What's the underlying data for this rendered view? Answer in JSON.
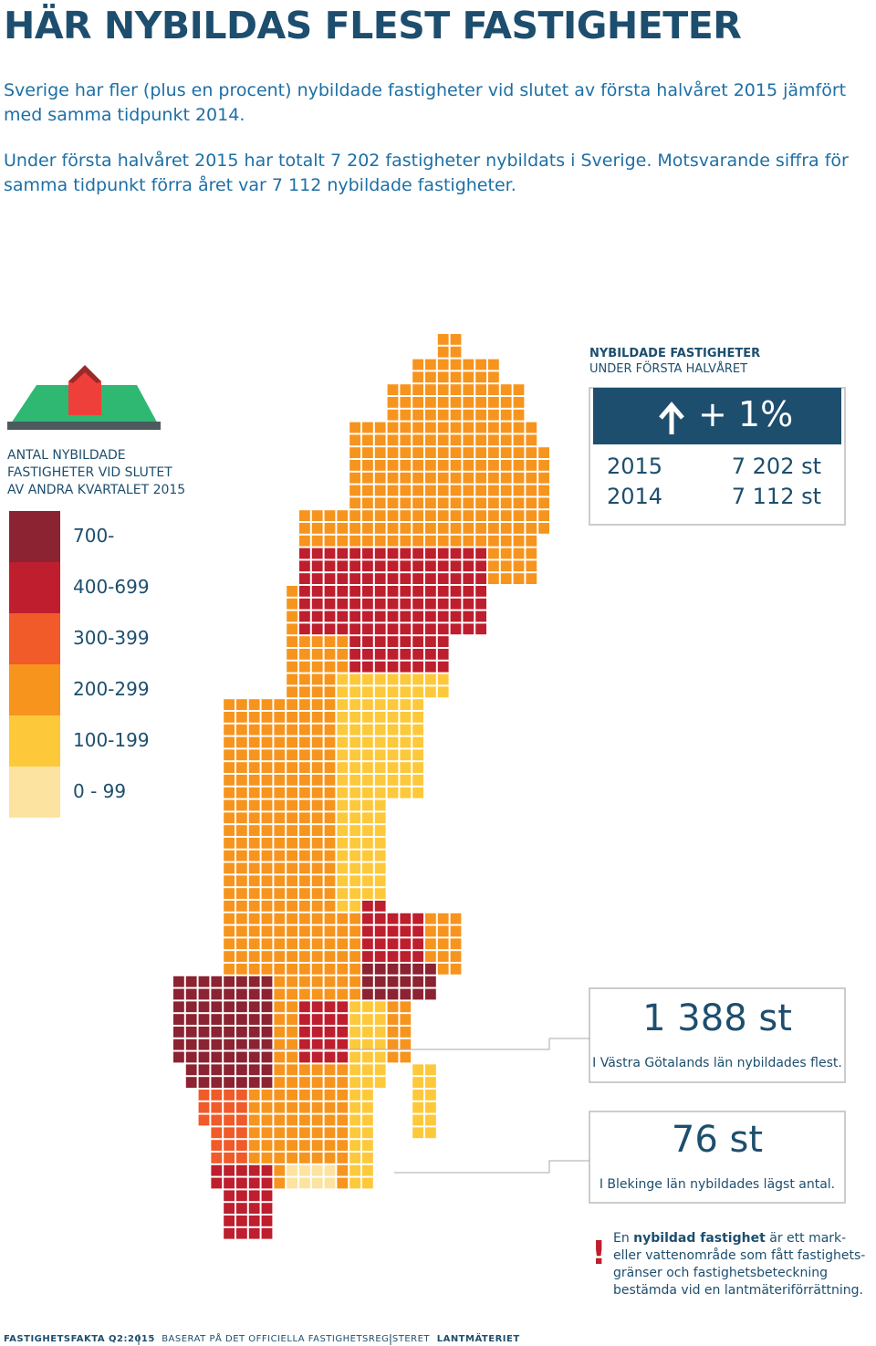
{
  "header": {
    "title": "HÄR NYBILDAS FLEST FASTIGHETER"
  },
  "intro": [
    "Sverige har fler (plus en procent) nybildade fastigheter vid slutet av första halvåret 2015 jämfört med samma tidpunkt 2014.",
    "Under första halvåret 2015 har totalt 7 202 fastigheter nybildats i Sverige. Motsvarande siffra för samma tidpunkt förra året var 7 112 nybildade fastigheter."
  ],
  "legend": {
    "title": [
      "ANTAL NYBILDADE",
      "FASTIGHETER VID SLUTET",
      "AV ANDRA KVARTALET 2015"
    ],
    "items": [
      "700-",
      "400-699",
      "300-399",
      "200-299",
      "100-199",
      "0 - 99"
    ]
  },
  "stats": {
    "title": "NYBILDADE FASTIGHETER",
    "subtitle": "UNDER FÖRSTA HALVÅRET",
    "change": "+ 1%",
    "rows": [
      [
        "2015",
        "7 202 st"
      ],
      [
        "2014",
        "7 112 st"
      ]
    ]
  },
  "callouts": [
    {
      "value": "1 388 st",
      "text": "I Västra Götalands län nybildades flest."
    },
    {
      "value": "76 st",
      "text": "I Blekinge län nybildades lägst antal."
    }
  ],
  "note": {
    "lead": "En",
    "term": "nybildad fastighet",
    "lines": [
      "är ett mark-",
      "eller vattenområde som fått fastighets-",
      "gränser och fastighetsbeteckning",
      "bestämda vid en lantmäteriförrättning."
    ]
  },
  "footer": [
    "FASTIGHETSFAKTA Q2:2015",
    "BASERAT PÅ DET OFFICIELLA FASTIGHETSREGISTERET",
    "LANTMÄTERIET"
  ]
}
